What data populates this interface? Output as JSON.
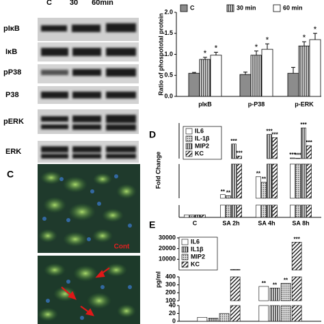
{
  "blot": {
    "header": [
      "C",
      "30",
      "60min"
    ],
    "labels": [
      "pIκB",
      "IκB",
      "pP38",
      "P38",
      "pERK",
      "ERK"
    ]
  },
  "microscopy": {
    "panel_label": "C",
    "annotation": "Cont"
  },
  "chart_data": [
    {
      "type": "bar",
      "ylabel": "Ratio of phospototal protein",
      "categories": [
        "pIκB",
        "p-P38",
        "p-ERK"
      ],
      "ylim": [
        0,
        2
      ],
      "yticks": [
        {
          "value": 0,
          "label": "0.0"
        },
        0.5,
        {
          "value": 1,
          "label": "1.0"
        },
        1.5,
        {
          "value": 2,
          "label": "2.0"
        }
      ],
      "legend": "top",
      "series": [
        {
          "name": "C",
          "color": "#8c8c8c",
          "values": [
            0.55,
            0.52,
            0.55
          ],
          "errors": [
            0.02,
            0.06,
            0.14
          ]
        },
        {
          "name": "30 min",
          "color": "#ffffff",
          "pattern": "vertical-stripes",
          "values": [
            0.88,
            0.98,
            1.2
          ],
          "errors": [
            0.05,
            0.1,
            0.1
          ],
          "annotations": [
            "*",
            "*",
            "*"
          ]
        },
        {
          "name": "60 min",
          "color": "#ffffff",
          "values": [
            0.98,
            1.12,
            1.35
          ],
          "errors": [
            0.07,
            0.13,
            0.15
          ],
          "annotations": [
            "*",
            "*",
            "*"
          ]
        }
      ]
    },
    {
      "type": "broken-bar",
      "panel_label": "D",
      "ylabel": "Fold Change",
      "categories": [
        "C",
        "SA 2h",
        "SA 4h",
        "SA 8h"
      ],
      "segments": [
        {
          "ylim": [
            0,
            5
          ]
        },
        {
          "ylim": [
            5,
            100
          ]
        },
        {
          "ylim": [
            100,
            1200
          ]
        }
      ],
      "series": [
        {
          "name": "IL6",
          "color": "#ffffff",
          "values": [
            1,
            15,
            65,
            120
          ],
          "annotations": [
            null,
            "**",
            "**",
            "***"
          ]
        },
        {
          "name": "IL-1β",
          "color": "#ffffff",
          "pattern": "dots",
          "values": [
            1,
            12,
            50,
            110
          ],
          "annotations": [
            null,
            "**",
            "**",
            "***"
          ]
        },
        {
          "name": "MIP2",
          "color": "#ffffff",
          "pattern": "vertical-stripes",
          "values": [
            1,
            550,
            850,
            1050
          ],
          "annotations": [
            null,
            "***",
            "***",
            "***"
          ]
        },
        {
          "name": "KC",
          "color": "#ffffff",
          "pattern": "diagonal-stripes",
          "values": [
            1,
            180,
            750,
            500
          ],
          "annotations": [
            null,
            "***",
            "***",
            "***"
          ]
        }
      ]
    },
    {
      "type": "broken-bar",
      "panel_label": "E",
      "ylabel": "pg/ml",
      "categories": [
        null,
        null
      ],
      "segments": [
        {
          "ylim": [
            0,
            40
          ],
          "yticks": [
            0,
            20,
            40
          ]
        },
        {
          "ylim": [
            100,
            400
          ],
          "yticks": [
            100,
            200,
            300,
            400
          ]
        },
        {
          "ylim": [
            0,
            30000
          ],
          "yticks": [
            10000,
            20000,
            30000
          ]
        }
      ],
      "series": [
        {
          "name": "IL6",
          "color": "#ffffff",
          "values": [
            10,
            280
          ],
          "annotations": [
            null,
            "**"
          ]
        },
        {
          "name": "IL1β",
          "color": "#ffffff",
          "pattern": "vertical-stripes",
          "values": [
            8,
            260
          ],
          "annotations": [
            null,
            "**"
          ]
        },
        {
          "name": "MIP2",
          "color": "#ffffff",
          "pattern": "dots",
          "values": [
            20,
            320
          ],
          "annotations": [
            null,
            "**"
          ]
        },
        {
          "name": "KC",
          "color": "#ffffff",
          "pattern": "diagonal-stripes",
          "values": [
            500,
            26000
          ],
          "annotations": [
            null,
            "***"
          ]
        }
      ]
    }
  ]
}
